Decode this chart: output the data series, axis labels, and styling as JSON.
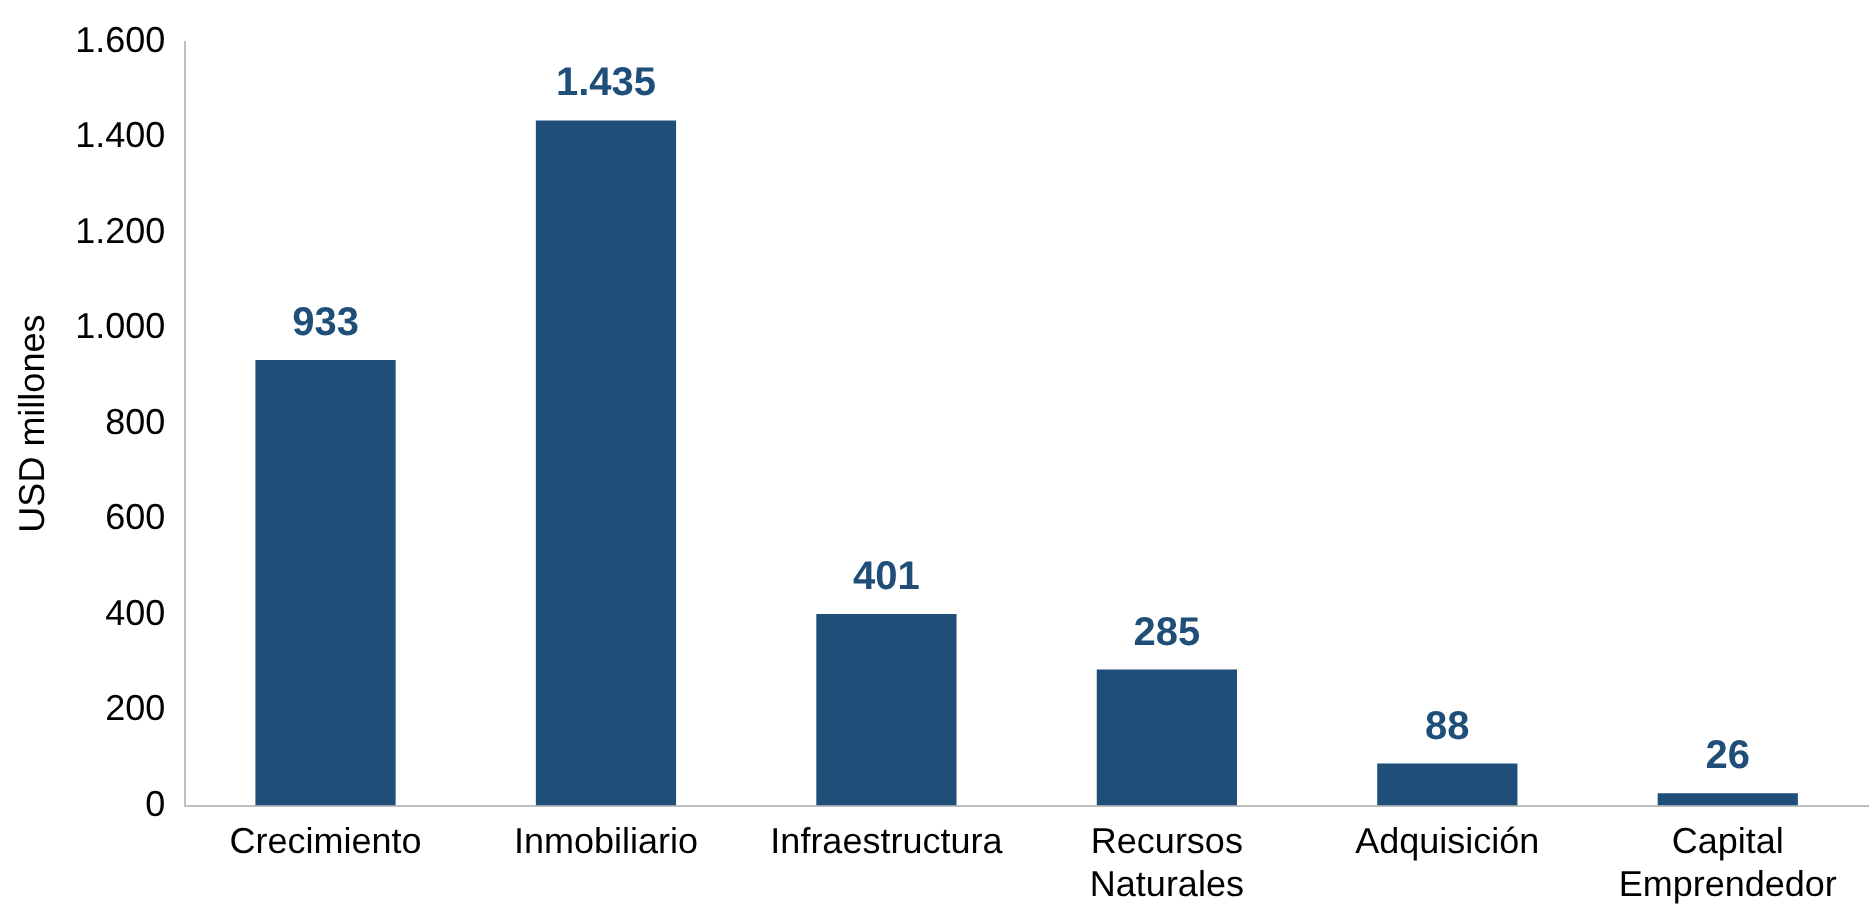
{
  "chart_data": {
    "type": "bar",
    "ylabel": "USD millones",
    "categories": [
      "Crecimiento",
      "Inmobiliario",
      "Infraestructura",
      "Recursos Naturales",
      "Adquisición",
      "Capital Emprendedor"
    ],
    "values": [
      933,
      1435,
      401,
      285,
      88,
      26
    ],
    "value_labels": [
      "933",
      "1.435",
      "401",
      "285",
      "88",
      "26"
    ],
    "color": "#1f4e79",
    "ylim": [
      0,
      1600
    ],
    "yticks": [
      0,
      200,
      400,
      600,
      800,
      {
        "value": 1000,
        "label": "1.000"
      },
      {
        "value": 1200,
        "label": "1.200"
      },
      {
        "value": 1400,
        "label": "1.400"
      },
      {
        "value": 1600,
        "label": "1.600"
      }
    ],
    "grid": false,
    "legend": false
  }
}
